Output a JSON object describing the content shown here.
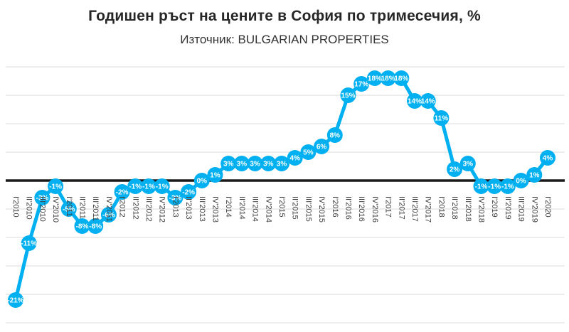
{
  "header": {
    "title": "Годишен ръст на цените в София по тримесечия, %",
    "subtitle": "Източник: BULGARIAN PROPERTIES"
  },
  "chart_data": {
    "type": "line",
    "title": "Годишен ръст на цените в София по тримесечия, %",
    "subtitle": "Източник: BULGARIAN PROPERTIES",
    "categories": [
      "I'2010",
      "II'2010",
      "III'2010",
      "IV'2010",
      "I'2011",
      "II'2011",
      "III'2011",
      "IV'2011",
      "I'2012",
      "II'2012",
      "III'2012",
      "IV'2012",
      "I'2013",
      "II'2013",
      "III'2013",
      "IV'2013",
      "I'2014",
      "II'2014",
      "III'2014",
      "IV'2014",
      "I'2015",
      "II'2015",
      "III'2015",
      "IV'2015",
      "I'2016",
      "II'2016",
      "III'2016",
      "IV'2016",
      "I'2017",
      "II'2017",
      "III'2017",
      "IV'2017",
      "I'2018",
      "II'2018",
      "III'2018",
      "IV'2018",
      "I'2019",
      "II'2019",
      "III'2019",
      "IV'2019",
      "I'2020"
    ],
    "values": [
      -21,
      -11,
      -3,
      -1,
      -5,
      -8,
      -8,
      -6,
      -2,
      -1,
      -1,
      -1,
      -3,
      -2,
      0,
      1,
      3,
      3,
      3,
      3,
      3,
      4,
      5,
      6,
      8,
      15,
      17,
      18,
      18,
      18,
      14,
      14,
      11,
      2,
      3,
      -1,
      -1,
      -1,
      0,
      1,
      4
    ],
    "labels": [
      "-21%",
      "-11%",
      "-3%",
      "-1%",
      "-5%",
      "-8%",
      "-8%",
      "-6%",
      "-2%",
      "-1%",
      "-1%",
      "-1%",
      "-3%",
      "-2%",
      "0%",
      "1%",
      "3%",
      "3%",
      "3%",
      "3%",
      "3%",
      "4%",
      "5%",
      "6%",
      "8%",
      "15%",
      "17%",
      "18%",
      "18%",
      "18%",
      "14%",
      "14%",
      "11%",
      "2%",
      "3%",
      "-1%",
      "-1%",
      "-1%",
      "0%",
      "1%",
      "4%"
    ],
    "xlabel": "",
    "ylabel": "",
    "ylim": [
      -25,
      20
    ],
    "gridline_step": 5,
    "grid": true,
    "legend": false,
    "marker_style": "filled-circle-with-label",
    "line_color": "#00B0F0",
    "marker_color": "#00B0F0",
    "data_label_color": "#FFFFFF",
    "zero_axis_color": "#1A1A1A",
    "gridline_color": "#D9D9D9",
    "axis_label_color": "#404040"
  }
}
